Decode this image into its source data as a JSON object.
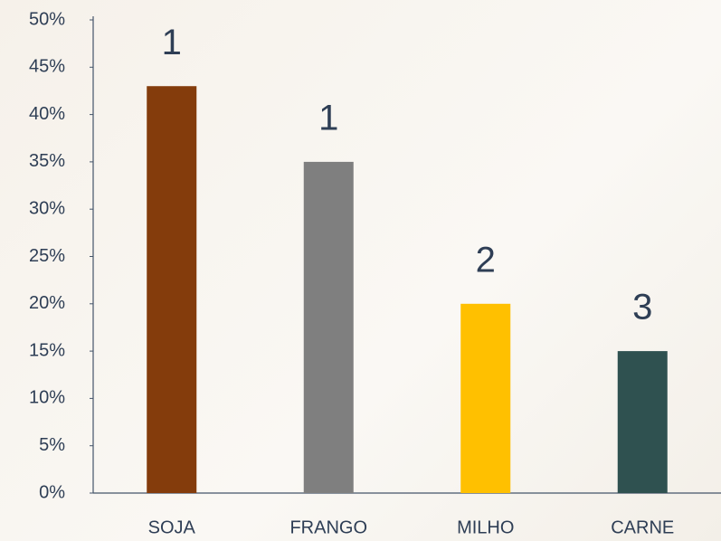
{
  "chart_data": {
    "type": "bar",
    "categories": [
      "SOJA",
      "FRANGO",
      "MILHO",
      "CARNE"
    ],
    "values": [
      43,
      35,
      20,
      15
    ],
    "colors": [
      "#843c0c",
      "#7f7f7f",
      "#ffc000",
      "#2f5150"
    ],
    "annotations": [
      "1",
      "1",
      "2",
      "3"
    ],
    "ylim": [
      0,
      50
    ],
    "yticks": [
      {
        "value": 0,
        "label": "0%"
      },
      {
        "value": 5,
        "label": "5%"
      },
      {
        "value": 10,
        "label": "10%"
      },
      {
        "value": 15,
        "label": "15%"
      },
      {
        "value": 20,
        "label": "20%"
      },
      {
        "value": 25,
        "label": "25%"
      },
      {
        "value": 30,
        "label": "30%"
      },
      {
        "value": 35,
        "label": "35%"
      },
      {
        "value": 40,
        "label": "40%"
      },
      {
        "value": 45,
        "label": "45%"
      },
      {
        "value": 50,
        "label": "50%"
      }
    ],
    "grid": false
  }
}
